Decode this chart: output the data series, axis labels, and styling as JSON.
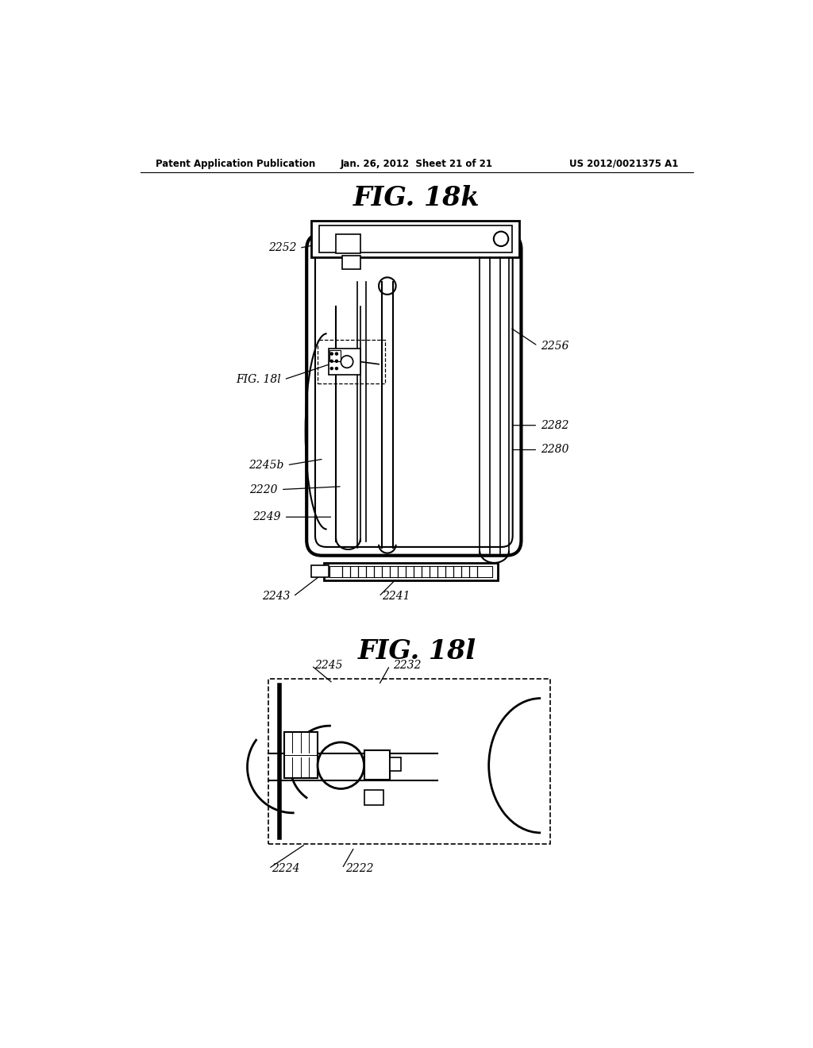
{
  "background_color": "#ffffff",
  "header_left": "Patent Application Publication",
  "header_center": "Jan. 26, 2012  Sheet 21 of 21",
  "header_right": "US 2012/0021375 A1",
  "fig1_title": "FIG. 18k",
  "fig2_title": "FIG. 18l"
}
